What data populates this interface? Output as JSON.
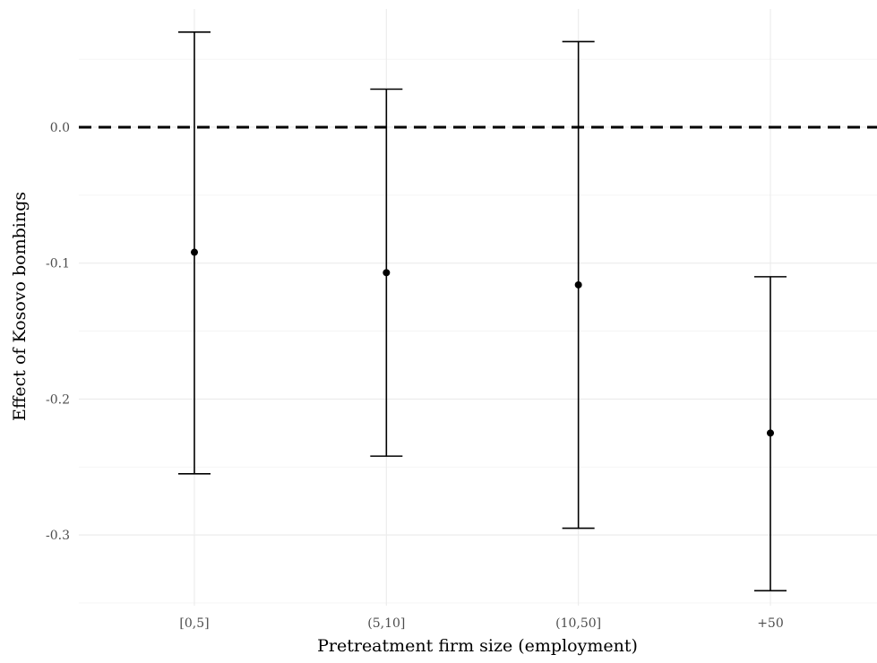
{
  "chart_data": {
    "type": "errorbar",
    "title": "",
    "xlabel": "Pretreatment firm size (employment)",
    "ylabel": "Effect of Kosovo bombings",
    "categories": [
      "[0,5]",
      "(5,10]",
      "(10,50]",
      "+50"
    ],
    "points": [
      {
        "category": "[0,5]",
        "estimate": -0.092,
        "lower": -0.255,
        "upper": 0.07
      },
      {
        "category": "(5,10]",
        "estimate": -0.107,
        "lower": -0.242,
        "upper": 0.028
      },
      {
        "category": "(10,50]",
        "estimate": -0.116,
        "lower": -0.295,
        "upper": 0.063
      },
      {
        "category": "+50",
        "estimate": -0.225,
        "lower": -0.341,
        "upper": -0.11
      }
    ],
    "reference_line": {
      "y": 0.0,
      "style": "dashed"
    },
    "y_ticks": [
      0.0,
      -0.1,
      -0.2,
      -0.3
    ],
    "y_tick_labels": [
      "0.0",
      "-0.1",
      "-0.2",
      "-0.3"
    ],
    "ylim": [
      -0.352,
      0.087
    ],
    "grid": true,
    "legend": "none",
    "colors": {
      "marks": "#000000",
      "grid": "#ebebeb",
      "tick_text": "#4d4d4d"
    }
  }
}
